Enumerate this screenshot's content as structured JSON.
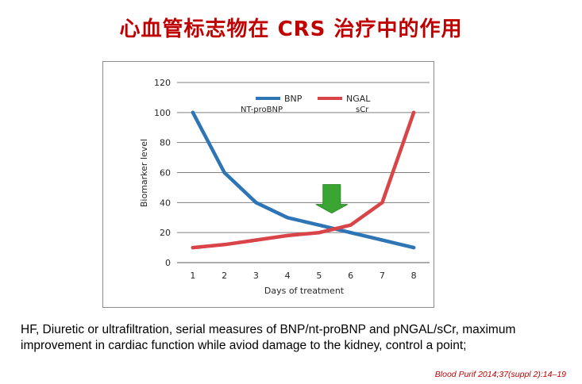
{
  "slide": {
    "title": "心血管标志物在 CRS 治疗中的作用",
    "caption": "HF, Diuretic or ultrafiltration, serial measures of BNP/nt-proBNP and pNGAL/sCr, maximum improvement in cardiac function while aviod damage to the kidney, control a point;",
    "citation": "Blood Purif 2014;37(suppl 2):14–19"
  },
  "colors": {
    "title": "#c00000",
    "bnp": "#2e75b6",
    "ngal": "#d94448",
    "arrow": "#3aa533",
    "grid": "#7f7f7f",
    "axis": "#595959"
  },
  "chart_data": {
    "type": "line",
    "x": [
      1,
      2,
      3,
      4,
      5,
      6,
      7,
      8
    ],
    "xticks": [
      "1",
      "2",
      "3",
      "4",
      "5",
      "6",
      "7",
      "8"
    ],
    "yticks": [
      "0",
      "20",
      "40",
      "60",
      "80",
      "100",
      "120"
    ],
    "xlim": [
      0.5,
      8.5
    ],
    "ylim": [
      0,
      120
    ],
    "xlabel": "Days of treatment",
    "ylabel": "Biomarker level",
    "grid": true,
    "legend": "top-center",
    "series": [
      {
        "name": "BNP",
        "subname": "NT-proBNP",
        "color": "#2e75b6",
        "values": [
          100,
          60,
          40,
          30,
          25,
          20,
          15,
          10
        ]
      },
      {
        "name": "NGAL",
        "subname": "sCr",
        "color": "#d94448",
        "values": [
          10,
          12,
          15,
          18,
          20,
          25,
          40,
          100
        ]
      }
    ],
    "annotation": {
      "type": "down-arrow",
      "x": 5.4,
      "y_bottom": 33,
      "y_top": 52,
      "color": "#3aa533"
    }
  }
}
